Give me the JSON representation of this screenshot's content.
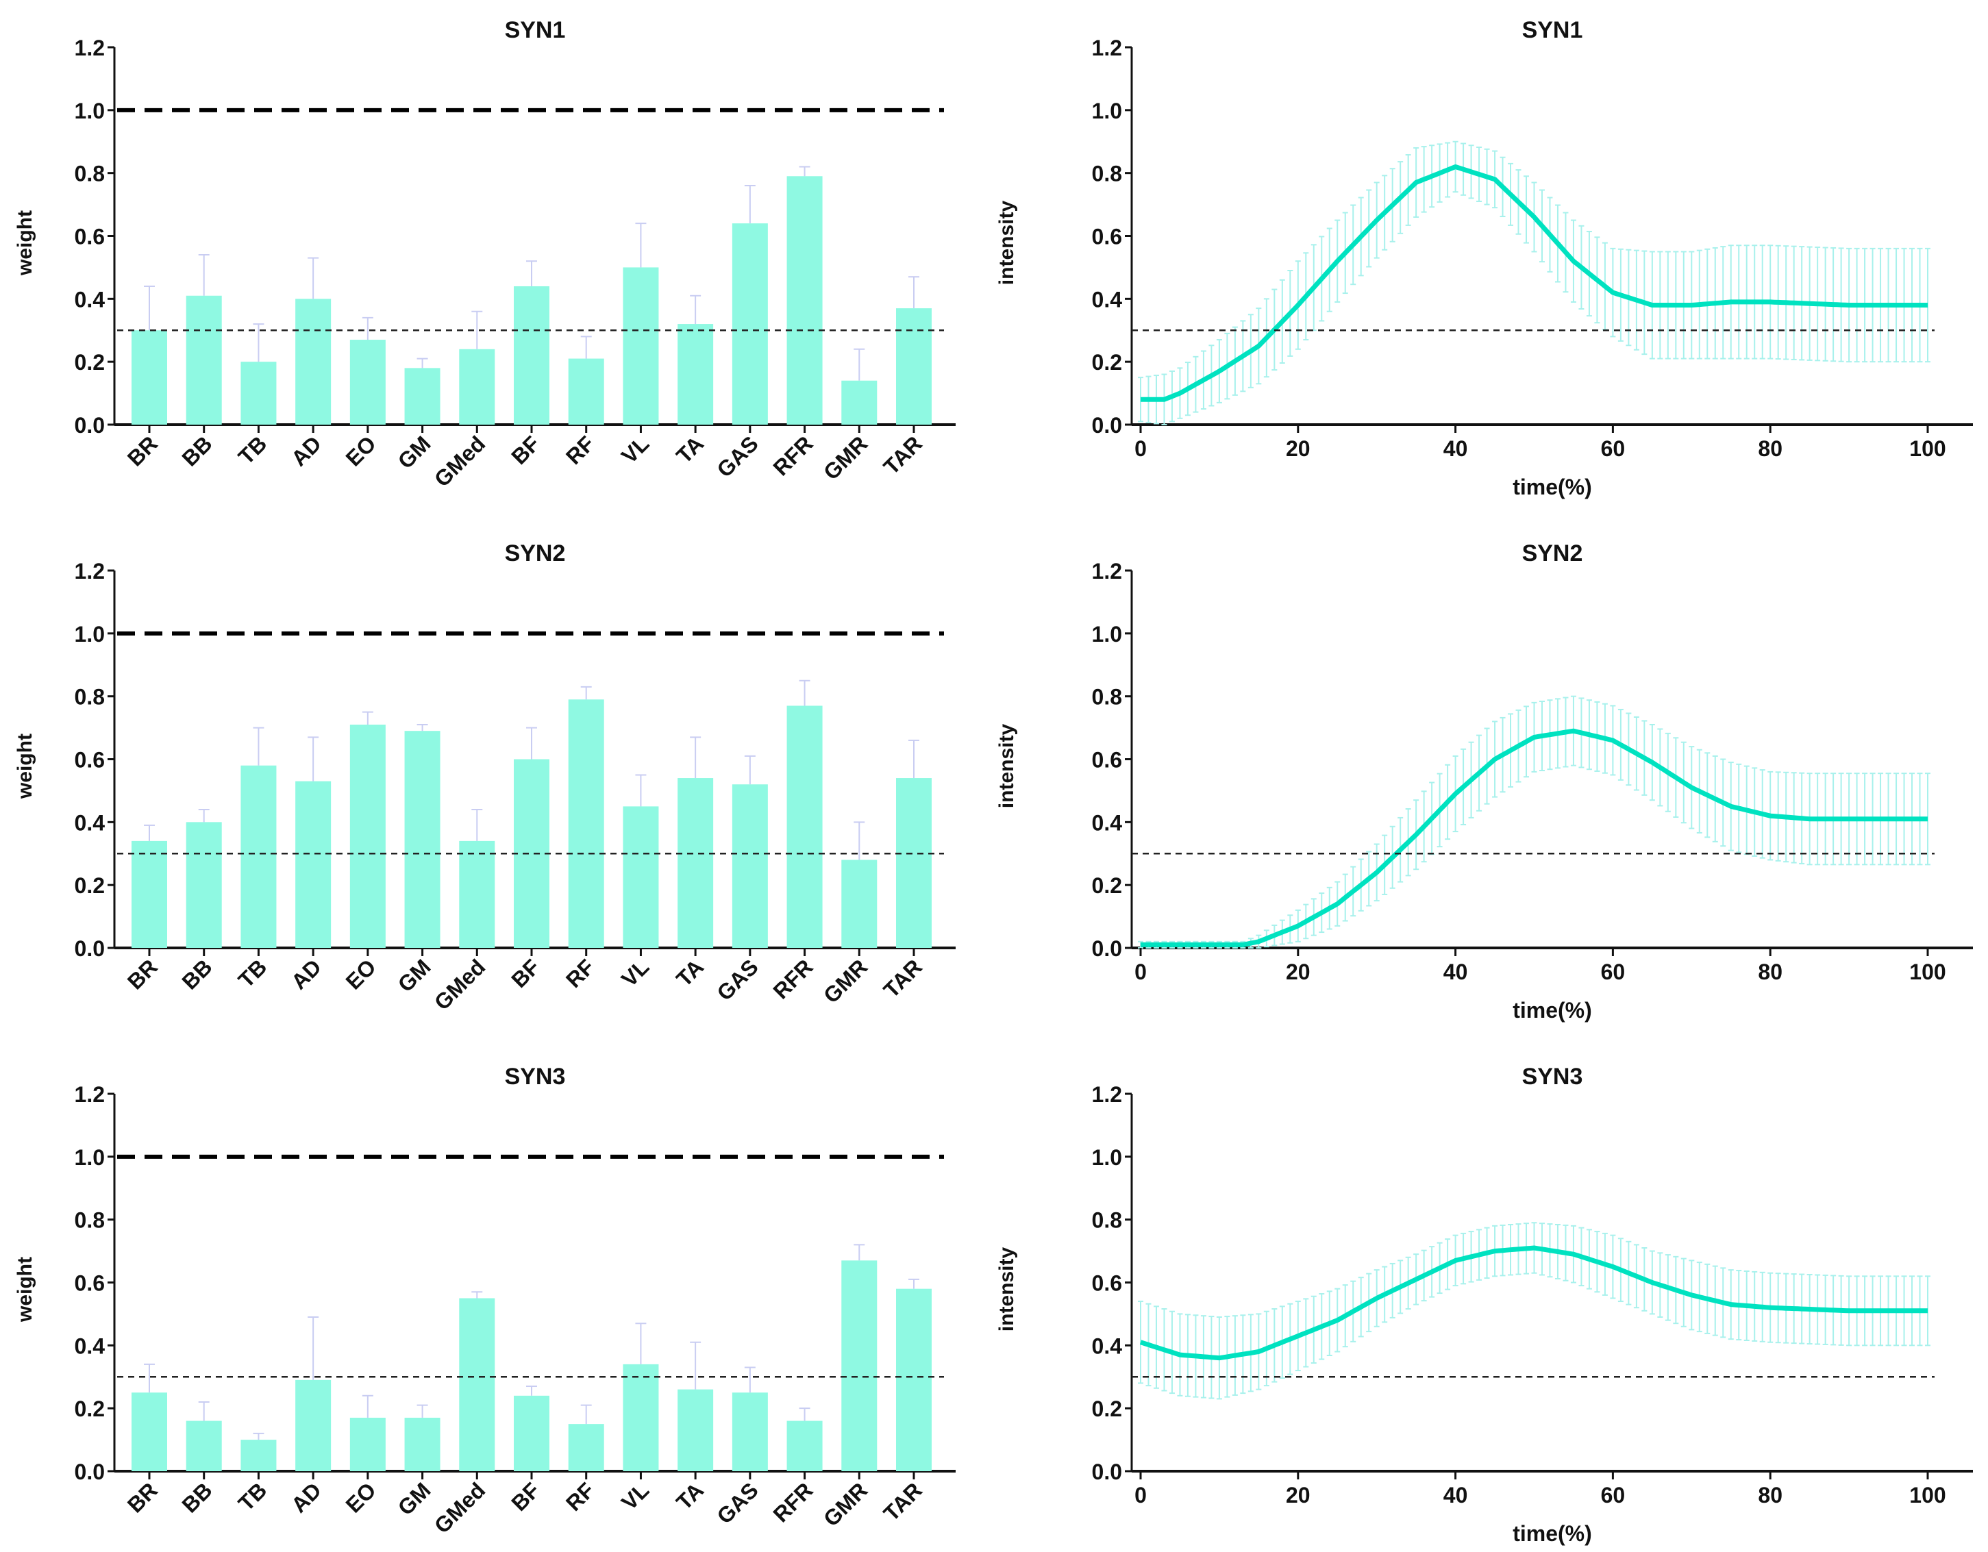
{
  "colors": {
    "bar": "#8ff9e2",
    "errbar": "#c9cdf2",
    "line": "#00e2c0",
    "sd": "#a8f1ec",
    "axis": "#111111"
  },
  "chart_data": [
    {
      "type": "bar",
      "title": "SYN1",
      "ylabel": "weight",
      "xlabel": "",
      "ylim": [
        0,
        1.2
      ],
      "yticks": [
        "0.0",
        "0.2",
        "0.4",
        "0.6",
        "0.8",
        "1.0",
        "1.2"
      ],
      "ref_lines": [
        1.0,
        0.3
      ],
      "categories": [
        "BR",
        "BB",
        "TB",
        "AD",
        "EO",
        "GM",
        "GMed",
        "BF",
        "RF",
        "VL",
        "TA",
        "GAS",
        "RFR",
        "GMR",
        "TAR"
      ],
      "values": [
        0.3,
        0.41,
        0.2,
        0.4,
        0.27,
        0.18,
        0.24,
        0.44,
        0.21,
        0.5,
        0.32,
        0.64,
        0.79,
        0.14,
        0.37
      ],
      "error_upper": [
        0.44,
        0.54,
        0.32,
        0.53,
        0.34,
        0.21,
        0.36,
        0.52,
        0.28,
        0.64,
        0.41,
        0.76,
        0.82,
        0.24,
        0.47
      ]
    },
    {
      "type": "line",
      "title": "SYN1",
      "ylabel": "intensity",
      "xlabel": "time(%)",
      "ylim": [
        0,
        1.2
      ],
      "xlim": [
        0,
        100
      ],
      "yticks": [
        "0.0",
        "0.2",
        "0.4",
        "0.6",
        "0.8",
        "1.0",
        "1.2"
      ],
      "xticks": [
        "0",
        "20",
        "40",
        "60",
        "80",
        "100"
      ],
      "ref_lines": [
        0.3
      ],
      "x": [
        0,
        3,
        5,
        10,
        15,
        20,
        25,
        30,
        35,
        40,
        45,
        50,
        55,
        60,
        65,
        70,
        75,
        80,
        90,
        100
      ],
      "mean": [
        0.08,
        0.08,
        0.1,
        0.17,
        0.25,
        0.38,
        0.52,
        0.65,
        0.77,
        0.82,
        0.78,
        0.66,
        0.52,
        0.42,
        0.38,
        0.38,
        0.39,
        0.39,
        0.38,
        0.38
      ],
      "sd": [
        0.07,
        0.08,
        0.08,
        0.1,
        0.12,
        0.14,
        0.13,
        0.12,
        0.11,
        0.08,
        0.09,
        0.11,
        0.13,
        0.14,
        0.17,
        0.17,
        0.18,
        0.18,
        0.18,
        0.18
      ]
    },
    {
      "type": "bar",
      "title": "SYN2",
      "ylabel": "weight",
      "xlabel": "",
      "ylim": [
        0,
        1.2
      ],
      "yticks": [
        "0.0",
        "0.2",
        "0.4",
        "0.6",
        "0.8",
        "1.0",
        "1.2"
      ],
      "ref_lines": [
        1.0,
        0.3
      ],
      "categories": [
        "BR",
        "BB",
        "TB",
        "AD",
        "EO",
        "GM",
        "GMed",
        "BF",
        "RF",
        "VL",
        "TA",
        "GAS",
        "RFR",
        "GMR",
        "TAR"
      ],
      "values": [
        0.34,
        0.4,
        0.58,
        0.53,
        0.71,
        0.69,
        0.34,
        0.6,
        0.79,
        0.45,
        0.54,
        0.52,
        0.77,
        0.28,
        0.54
      ],
      "error_upper": [
        0.39,
        0.44,
        0.7,
        0.67,
        0.75,
        0.71,
        0.44,
        0.7,
        0.83,
        0.55,
        0.67,
        0.61,
        0.85,
        0.4,
        0.66
      ]
    },
    {
      "type": "line",
      "title": "SYN2",
      "ylabel": "intensity",
      "xlabel": "time(%)",
      "ylim": [
        0,
        1.2
      ],
      "xlim": [
        0,
        100
      ],
      "yticks": [
        "0.0",
        "0.2",
        "0.4",
        "0.6",
        "0.8",
        "1.0",
        "1.2"
      ],
      "xticks": [
        "0",
        "20",
        "40",
        "60",
        "80",
        "100"
      ],
      "ref_lines": [
        0.3
      ],
      "x": [
        0,
        10,
        13,
        15,
        20,
        25,
        30,
        35,
        40,
        45,
        50,
        55,
        60,
        65,
        70,
        75,
        80,
        85,
        90,
        100
      ],
      "mean": [
        0.01,
        0.01,
        0.01,
        0.02,
        0.07,
        0.14,
        0.24,
        0.36,
        0.49,
        0.6,
        0.67,
        0.69,
        0.66,
        0.59,
        0.51,
        0.45,
        0.42,
        0.41,
        0.41,
        0.41
      ],
      "sd": [
        0.01,
        0.01,
        0.01,
        0.02,
        0.05,
        0.07,
        0.09,
        0.11,
        0.12,
        0.12,
        0.11,
        0.11,
        0.11,
        0.12,
        0.13,
        0.14,
        0.14,
        0.145,
        0.145,
        0.145
      ]
    },
    {
      "type": "bar",
      "title": "SYN3",
      "ylabel": "weight",
      "xlabel": "",
      "ylim": [
        0,
        1.2
      ],
      "yticks": [
        "0.0",
        "0.2",
        "0.4",
        "0.6",
        "0.8",
        "1.0",
        "1.2"
      ],
      "ref_lines": [
        1.0,
        0.3
      ],
      "categories": [
        "BR",
        "BB",
        "TB",
        "AD",
        "EO",
        "GM",
        "GMed",
        "BF",
        "RF",
        "VL",
        "TA",
        "GAS",
        "RFR",
        "GMR",
        "TAR"
      ],
      "values": [
        0.25,
        0.16,
        0.1,
        0.29,
        0.17,
        0.17,
        0.55,
        0.24,
        0.15,
        0.34,
        0.26,
        0.25,
        0.16,
        0.67,
        0.58
      ],
      "error_upper": [
        0.34,
        0.22,
        0.12,
        0.49,
        0.24,
        0.21,
        0.57,
        0.27,
        0.21,
        0.47,
        0.41,
        0.33,
        0.2,
        0.72,
        0.61
      ]
    },
    {
      "type": "line",
      "title": "SYN3",
      "ylabel": "intensity",
      "xlabel": "time(%)",
      "ylim": [
        0,
        1.2
      ],
      "xlim": [
        0,
        100
      ],
      "yticks": [
        "0.0",
        "0.2",
        "0.4",
        "0.6",
        "0.8",
        "1.0",
        "1.2"
      ],
      "xticks": [
        "0",
        "20",
        "40",
        "60",
        "80",
        "100"
      ],
      "ref_lines": [
        0.3
      ],
      "x": [
        0,
        5,
        10,
        15,
        20,
        25,
        30,
        35,
        40,
        45,
        50,
        55,
        60,
        65,
        70,
        75,
        80,
        90,
        100
      ],
      "mean": [
        0.41,
        0.37,
        0.36,
        0.38,
        0.43,
        0.48,
        0.55,
        0.61,
        0.67,
        0.7,
        0.71,
        0.69,
        0.65,
        0.6,
        0.56,
        0.53,
        0.52,
        0.51,
        0.51
      ],
      "sd": [
        0.13,
        0.13,
        0.13,
        0.12,
        0.11,
        0.1,
        0.09,
        0.08,
        0.08,
        0.08,
        0.08,
        0.09,
        0.1,
        0.1,
        0.11,
        0.11,
        0.11,
        0.11,
        0.11
      ]
    }
  ]
}
